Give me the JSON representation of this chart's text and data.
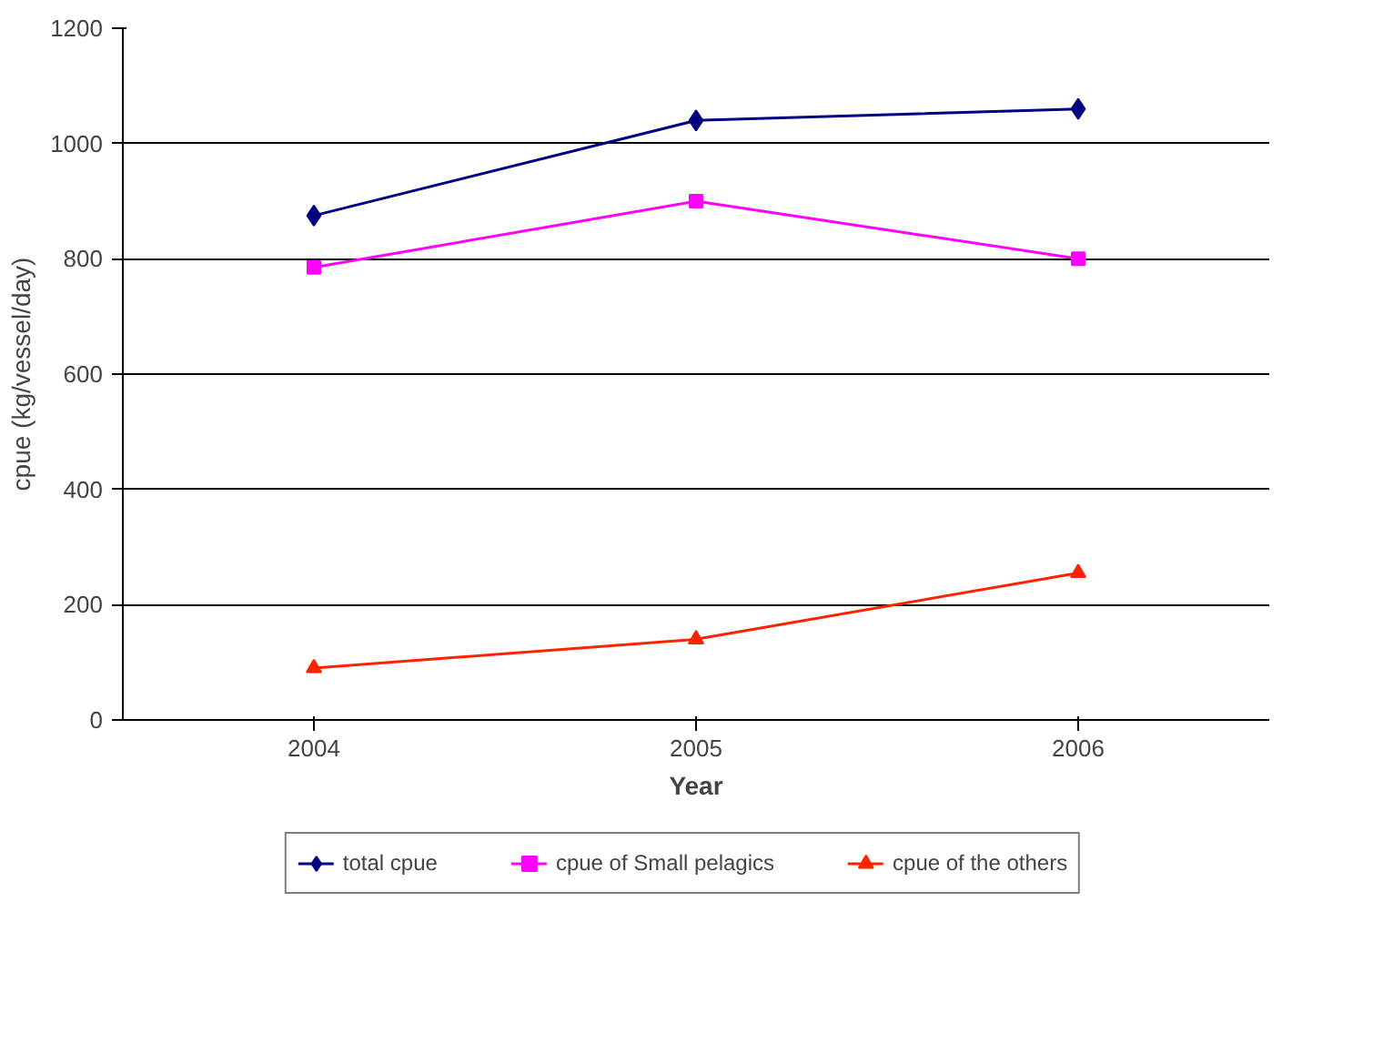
{
  "chart_data": {
    "type": "line",
    "xlabel": "Year",
    "ylabel": "cpue (kg/vessel/day)",
    "categories": [
      "2004",
      "2005",
      "2006"
    ],
    "series": [
      {
        "name": "total cpue",
        "color": "#000080",
        "marker": "diamond",
        "values": [
          875,
          1040,
          1060
        ]
      },
      {
        "name": "cpue of Small pelagics",
        "color": "#ff00ff",
        "marker": "square",
        "values": [
          785,
          900,
          800
        ]
      },
      {
        "name": "cpue of the others",
        "color": "#ff2200",
        "marker": "triangle",
        "values": [
          90,
          140,
          255
        ]
      }
    ],
    "ylim": [
      0,
      1200
    ],
    "yticks": [
      0,
      200,
      400,
      600,
      800,
      1000,
      1200
    ],
    "grid": "y",
    "legend": "bottom",
    "line_style": "solid"
  }
}
